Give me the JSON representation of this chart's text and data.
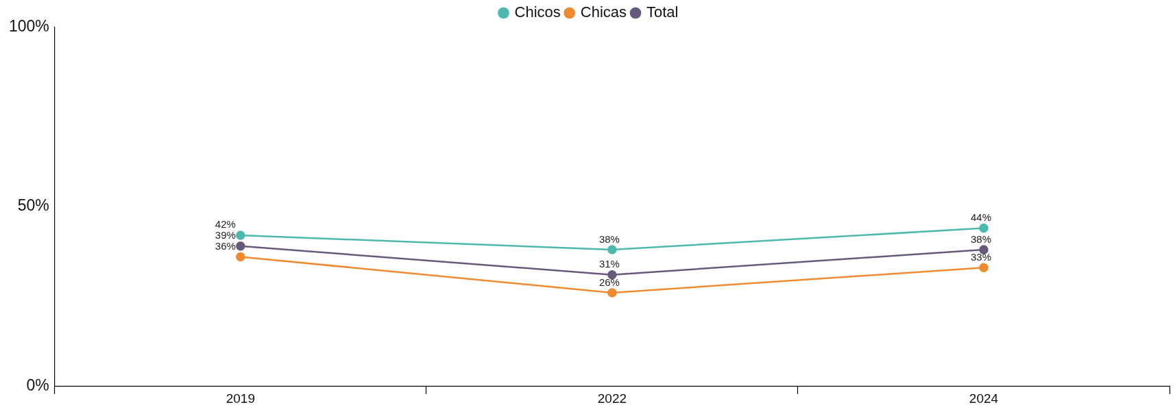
{
  "chart_data": {
    "type": "line",
    "categories": [
      "2019",
      "2022",
      "2024"
    ],
    "series": [
      {
        "name": "Chicos",
        "color": "#4db8ad",
        "values": [
          42,
          38,
          44
        ],
        "value_labels": [
          "42%",
          "38%",
          "44%"
        ]
      },
      {
        "name": "Chicas",
        "color": "#ee8a2f",
        "values": [
          36,
          26,
          33
        ],
        "value_labels": [
          "36%",
          "26%",
          "33%"
        ]
      },
      {
        "name": "Total",
        "color": "#67587c",
        "values": [
          39,
          31,
          38
        ],
        "value_labels": [
          "39%",
          "31%",
          "38%"
        ]
      }
    ],
    "ylim": [
      0,
      100
    ],
    "yticks": [
      {
        "value": 0,
        "label": "0%"
      },
      {
        "value": 50,
        "label": "50%"
      },
      {
        "value": 100,
        "label": "100%"
      }
    ],
    "grid": false,
    "legend": "top",
    "marker": "circle",
    "line_style": "solid"
  }
}
